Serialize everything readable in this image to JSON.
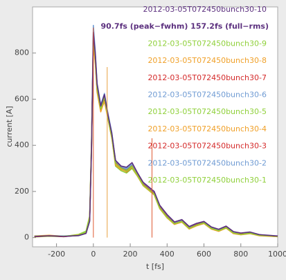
{
  "chart_data": {
    "type": "line",
    "xlabel": "t [fs]",
    "ylabel": "current [A]",
    "annotation": "90.7fs (peak−fwhm)   157.2fs (full−rms)",
    "xlim": [
      -330,
      1000
    ],
    "xticks": [
      -200,
      0,
      200,
      400,
      600,
      800,
      1000
    ],
    "ylim": [
      -40,
      1000
    ],
    "yticks": [
      0,
      200,
      400,
      600,
      800
    ],
    "vlines": [
      {
        "x": 0,
        "color": "#e05a32"
      },
      {
        "x": 75,
        "color": "#e8a040"
      },
      {
        "x": 318,
        "color": "#e05a32"
      }
    ],
    "x": [
      -320,
      -240,
      -160,
      -80,
      -40,
      -20,
      -10,
      0,
      10,
      20,
      40,
      60,
      80,
      100,
      120,
      150,
      180,
      210,
      240,
      270,
      300,
      330,
      360,
      400,
      440,
      480,
      520,
      560,
      600,
      640,
      680,
      720,
      760,
      800,
      850,
      900,
      950,
      1000
    ],
    "series": [
      {
        "name": "2012-03-05T072450bunch30-1",
        "color": "#8fd03a",
        "values": [
          3,
          6,
          4,
          12,
          25,
          90,
          420,
          860,
          770,
          640,
          550,
          610,
          510,
          430,
          310,
          290,
          280,
          300,
          265,
          225,
          205,
          185,
          125,
          85,
          58,
          68,
          38,
          52,
          62,
          38,
          28,
          42,
          18,
          14,
          18,
          9,
          7,
          4
        ]
      },
      {
        "name": "2012-03-05T072450bunch30-2",
        "color": "#6f9bd3",
        "values": [
          6,
          9,
          6,
          8,
          18,
          70,
          380,
          880,
          800,
          660,
          570,
          590,
          530,
          450,
          330,
          305,
          295,
          315,
          275,
          235,
          212,
          195,
          135,
          92,
          62,
          72,
          42,
          58,
          66,
          42,
          32,
          46,
          22,
          16,
          21,
          11,
          9,
          6
        ]
      },
      {
        "name": "2012-03-05T072450bunch30-3",
        "color": "#d42a2a",
        "values": [
          4,
          7,
          5,
          11,
          22,
          85,
          410,
          870,
          790,
          655,
          565,
          605,
          525,
          445,
          325,
          300,
          285,
          305,
          272,
          232,
          215,
          192,
          132,
          94,
          64,
          75,
          45,
          57,
          68,
          44,
          33,
          47,
          24,
          17,
          22,
          12,
          8,
          5
        ]
      },
      {
        "name": "2012-03-05T072450bunch30-4",
        "color": "#f0a028",
        "values": [
          7,
          10,
          6,
          9,
          19,
          75,
          390,
          840,
          760,
          630,
          545,
          595,
          515,
          435,
          315,
          295,
          288,
          308,
          268,
          228,
          208,
          188,
          128,
          88,
          59,
          69,
          39,
          53,
          63,
          39,
          29,
          44,
          19,
          13,
          19,
          10,
          7,
          6
        ]
      },
      {
        "name": "2012-03-05T072450bunch30-5",
        "color": "#8fd03a",
        "values": [
          5,
          8,
          5,
          14,
          28,
          95,
          430,
          865,
          775,
          645,
          555,
          615,
          520,
          440,
          320,
          298,
          292,
          312,
          270,
          230,
          210,
          190,
          130,
          90,
          60,
          70,
          40,
          55,
          64,
          41,
          31,
          45,
          21,
          15,
          20,
          10,
          8,
          5
        ]
      },
      {
        "name": "2012-03-05T072450bunch30-6",
        "color": "#6f9bd3",
        "values": [
          6,
          8,
          7,
          10,
          20,
          82,
          415,
          920,
          810,
          670,
          575,
          625,
          535,
          455,
          335,
          310,
          300,
          318,
          278,
          238,
          218,
          197,
          137,
          96,
          65,
          74,
          44,
          60,
          68,
          45,
          34,
          48,
          23,
          18,
          22,
          12,
          9,
          6
        ]
      },
      {
        "name": "2012-03-05T072450bunch30-7",
        "color": "#d42a2a",
        "values": [
          4,
          7,
          4,
          10,
          21,
          78,
          400,
          860,
          780,
          650,
          560,
          600,
          522,
          442,
          322,
          302,
          290,
          310,
          270,
          231,
          211,
          191,
          131,
          91,
          61,
          71,
          41,
          56,
          65,
          40,
          30,
          44,
          20,
          15,
          19,
          9,
          7,
          4
        ]
      },
      {
        "name": "2012-03-05T072450bunch30-8",
        "color": "#f0a028",
        "values": [
          5,
          9,
          5,
          12,
          23,
          88,
          405,
          850,
          765,
          635,
          550,
          590,
          512,
          432,
          318,
          296,
          286,
          306,
          266,
          226,
          206,
          186,
          126,
          86,
          57,
          67,
          37,
          51,
          61,
          37,
          27,
          41,
          17,
          12,
          17,
          8,
          6,
          4
        ]
      },
      {
        "name": "2012-03-05T072450bunch30-9",
        "color": "#8fd03a",
        "values": [
          6,
          7,
          6,
          11,
          24,
          84,
          395,
          875,
          785,
          648,
          558,
          608,
          518,
          438,
          322,
          301,
          289,
          309,
          269,
          229,
          209,
          189,
          129,
          89,
          60,
          70,
          40,
          54,
          64,
          40,
          30,
          43,
          20,
          14,
          19,
          10,
          8,
          5
        ]
      },
      {
        "name": "2012-03-05T072450bunch30-10",
        "color": "#5b2f7e",
        "values": [
          5,
          8,
          5,
          9,
          18,
          72,
          385,
          890,
          800,
          665,
          570,
          620,
          530,
          450,
          335,
          310,
          305,
          325,
          280,
          240,
          220,
          200,
          140,
          100,
          68,
          78,
          48,
          62,
          70,
          46,
          36,
          50,
          26,
          20,
          24,
          13,
          10,
          7
        ]
      }
    ]
  }
}
